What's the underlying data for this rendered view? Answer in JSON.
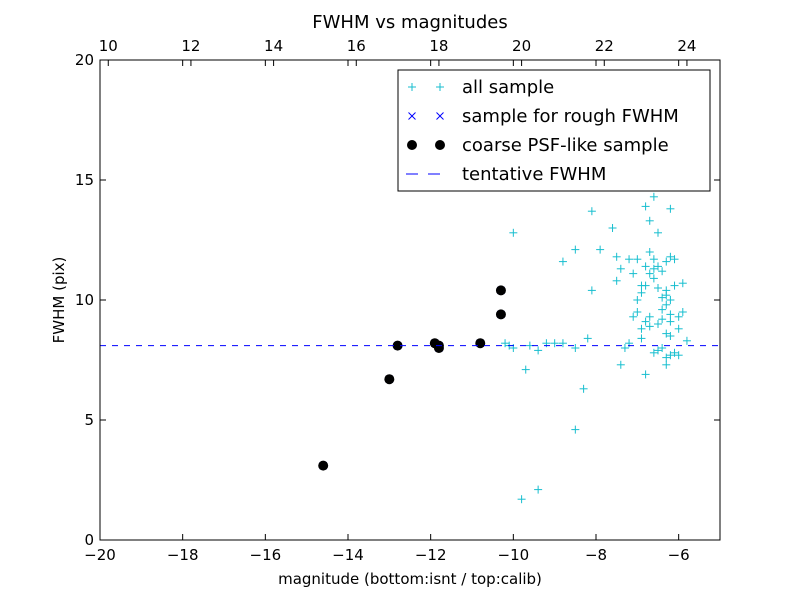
{
  "chart_data": {
    "type": "scatter",
    "title": "FWHM vs magnitudes",
    "xlabel": "magnitude (bottom:isnt / top:calib)",
    "ylabel": "FWHM (pix)",
    "xlim": [
      -20,
      -5
    ],
    "ylim": [
      0,
      20
    ],
    "x_ticks": [
      -20,
      -18,
      -16,
      -14,
      -12,
      -10,
      -8,
      -6
    ],
    "x_tick_labels": [
      "−20",
      "−18",
      "−16",
      "−14",
      "−12",
      "−10",
      "−8",
      "−6"
    ],
    "y_ticks": [
      0,
      5,
      10,
      15,
      20
    ],
    "y_tick_labels": [
      "0",
      "5",
      "10",
      "15",
      "20"
    ],
    "top_axis": {
      "xlim": [
        9.8,
        24.8
      ],
      "ticks": [
        10,
        12,
        14,
        16,
        18,
        20,
        22,
        24
      ],
      "tick_labels": [
        "10",
        "12",
        "14",
        "16",
        "18",
        "20",
        "22",
        "24"
      ]
    },
    "grid": false,
    "legend_position": "top-right",
    "series": [
      {
        "name": "all sample",
        "marker": "plus",
        "color": "#17becf",
        "points": [
          [
            -9.8,
            1.7
          ],
          [
            -9.4,
            2.1
          ],
          [
            -8.5,
            4.6
          ],
          [
            -8.3,
            6.3
          ],
          [
            -9.7,
            7.1
          ],
          [
            -9.4,
            7.9
          ],
          [
            -9.6,
            8.1
          ],
          [
            -10.0,
            8.0
          ],
          [
            -10.1,
            8.1
          ],
          [
            -10.2,
            8.2
          ],
          [
            -9.2,
            8.2
          ],
          [
            -9.0,
            8.2
          ],
          [
            -8.8,
            8.2
          ],
          [
            -8.5,
            8.0
          ],
          [
            -8.2,
            8.4
          ],
          [
            -7.4,
            7.3
          ],
          [
            -7.3,
            8.0
          ],
          [
            -7.2,
            8.2
          ],
          [
            -6.9,
            8.4
          ],
          [
            -6.8,
            6.9
          ],
          [
            -6.6,
            7.8
          ],
          [
            -6.5,
            7.9
          ],
          [
            -6.4,
            8.0
          ],
          [
            -6.3,
            7.3
          ],
          [
            -6.3,
            7.6
          ],
          [
            -6.2,
            7.7
          ],
          [
            -6.1,
            7.8
          ],
          [
            -6.0,
            7.7
          ],
          [
            -5.8,
            8.3
          ],
          [
            -6.8,
            9.1
          ],
          [
            -6.7,
            9.3
          ],
          [
            -6.5,
            9.0
          ],
          [
            -6.4,
            9.6
          ],
          [
            -6.3,
            10.2
          ],
          [
            -6.2,
            9.1
          ],
          [
            -6.0,
            8.8
          ],
          [
            -5.9,
            9.5
          ],
          [
            -5.9,
            10.7
          ],
          [
            -6.9,
            8.8
          ],
          [
            -6.7,
            8.9
          ],
          [
            -6.3,
            8.6
          ],
          [
            -6.2,
            8.5
          ],
          [
            -7.0,
            9.5
          ],
          [
            -6.9,
            10.3
          ],
          [
            -6.8,
            10.6
          ],
          [
            -6.6,
            10.9
          ],
          [
            -6.5,
            10.5
          ],
          [
            -6.4,
            10.1
          ],
          [
            -6.3,
            10.4
          ],
          [
            -6.2,
            10.0
          ],
          [
            -6.1,
            10.6
          ],
          [
            -7.1,
            11.1
          ],
          [
            -7.0,
            11.7
          ],
          [
            -6.9,
            10.6
          ],
          [
            -6.7,
            11.1
          ],
          [
            -6.6,
            11.3
          ],
          [
            -6.5,
            11.4
          ],
          [
            -6.4,
            11.2
          ],
          [
            -6.3,
            11.6
          ],
          [
            -6.2,
            11.8
          ],
          [
            -6.1,
            11.7
          ],
          [
            -6.7,
            12.0
          ],
          [
            -6.6,
            11.7
          ],
          [
            -6.8,
            11.4
          ],
          [
            -7.2,
            11.7
          ],
          [
            -7.4,
            11.3
          ],
          [
            -7.5,
            11.8
          ],
          [
            -7.5,
            10.8
          ],
          [
            -7.1,
            9.3
          ],
          [
            -6.4,
            9.2
          ],
          [
            -6.3,
            9.8
          ],
          [
            -6.2,
            9.4
          ],
          [
            -6.0,
            9.3
          ],
          [
            -7.0,
            10.0
          ],
          [
            -8.8,
            11.6
          ],
          [
            -8.5,
            12.1
          ],
          [
            -7.9,
            12.1
          ],
          [
            -8.1,
            10.4
          ],
          [
            -8.1,
            13.7
          ],
          [
            -7.6,
            13.0
          ],
          [
            -6.8,
            13.9
          ],
          [
            -6.7,
            13.3
          ],
          [
            -6.5,
            12.8
          ],
          [
            -6.2,
            13.8
          ],
          [
            -6.6,
            14.3
          ],
          [
            -10.0,
            12.8
          ]
        ]
      },
      {
        "name": "sample for rough FWHM",
        "marker": "x",
        "color": "#0000ff",
        "points": [
          [
            -14.6,
            3.1
          ],
          [
            -13.0,
            6.7
          ],
          [
            -12.8,
            8.1
          ],
          [
            -11.9,
            8.2
          ],
          [
            -11.8,
            8.0
          ],
          [
            -11.8,
            8.1
          ],
          [
            -10.8,
            8.2
          ],
          [
            -10.3,
            10.4
          ],
          [
            -10.3,
            9.4
          ]
        ]
      },
      {
        "name": "coarse PSF-like sample",
        "marker": "circle",
        "color": "#000000",
        "points": [
          [
            -14.6,
            3.1
          ],
          [
            -13.0,
            6.7
          ],
          [
            -12.8,
            8.1
          ],
          [
            -11.9,
            8.2
          ],
          [
            -11.8,
            8.0
          ],
          [
            -11.8,
            8.1
          ],
          [
            -10.8,
            8.2
          ],
          [
            -10.3,
            10.4
          ],
          [
            -10.3,
            9.4
          ]
        ]
      },
      {
        "name": "tentative FWHM",
        "marker": "dashed-line",
        "color": "#0000ff",
        "y": 8.1
      }
    ]
  }
}
